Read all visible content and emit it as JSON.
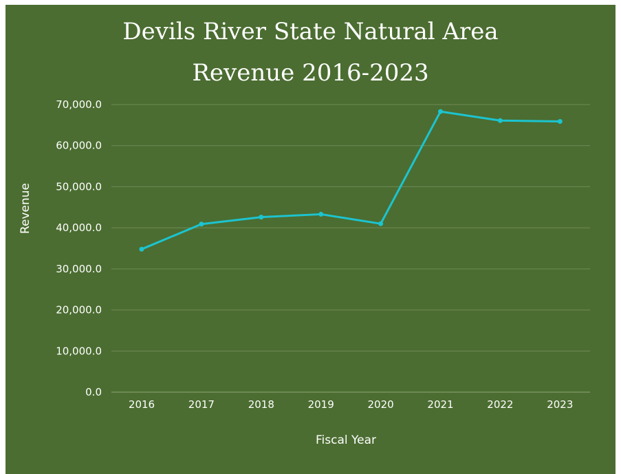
{
  "chart_data": {
    "type": "line",
    "title": "Devils River State Natural Area",
    "subtitle": "Revenue 2016-2023",
    "xlabel": "Fiscal Year",
    "ylabel": "Revenue",
    "categories": [
      "2016",
      "2017",
      "2018",
      "2019",
      "2020",
      "2021",
      "2022",
      "2023"
    ],
    "series": [
      {
        "values": [
          34800,
          40900,
          42600,
          43300,
          41000,
          68300,
          66100,
          65900
        ]
      }
    ],
    "ylim": [
      0,
      70000
    ],
    "yticks": [
      "0.0",
      "10,000.0",
      "20,000.0",
      "30,000.0",
      "40,000.0",
      "50,000.0",
      "60,000.0",
      "70,000.0"
    ],
    "grid": true,
    "line_color": "#1cc4d0",
    "background_color": "#4b6d31"
  }
}
